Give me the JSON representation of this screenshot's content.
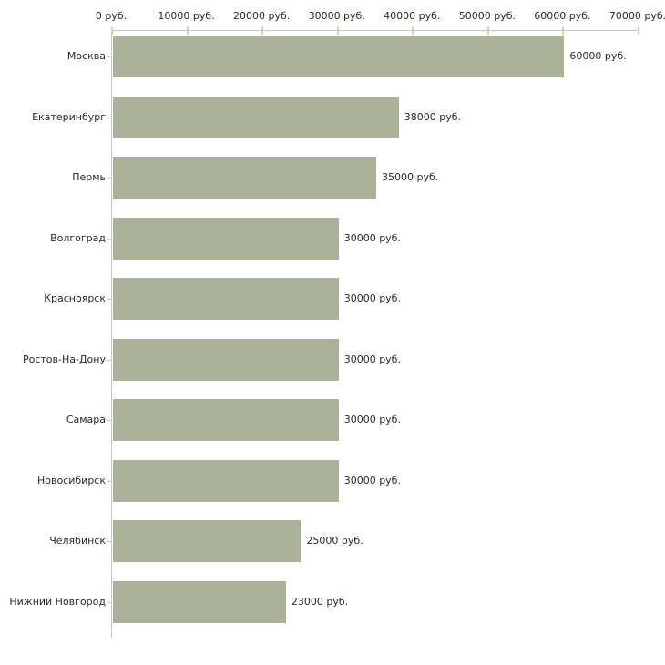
{
  "chart_data": {
    "type": "bar",
    "orientation": "horizontal",
    "title": "",
    "xlabel": "",
    "ylabel": "",
    "xlim": [
      0,
      70000
    ],
    "grid": false,
    "legend": false,
    "categories": [
      "Москва",
      "Екатеринбург",
      "Пермь",
      "Волгоград",
      "Красноярск",
      "Ростов-На-Дону",
      "Самара",
      "Новосибирск",
      "Челябинск",
      "Нижний Новгород"
    ],
    "values": [
      60000,
      38000,
      35000,
      30000,
      30000,
      30000,
      30000,
      30000,
      25000,
      23000
    ],
    "value_labels": [
      "60000 руб.",
      "38000 руб.",
      "35000 руб.",
      "30000 руб.",
      "30000 руб.",
      "30000 руб.",
      "30000 руб.",
      "30000 руб.",
      "25000 руб.",
      "23000 руб."
    ],
    "x_ticks": [
      0,
      10000,
      20000,
      30000,
      40000,
      50000,
      60000,
      70000
    ],
    "x_tick_labels": [
      "0 руб.",
      "10000 руб.",
      "20000 руб.",
      "30000 руб.",
      "40000 руб.",
      "50000 руб.",
      "60000 руб.",
      "70000 руб."
    ],
    "bar_color": "#acb199",
    "axis_line_color": "#c6c6c6",
    "tick_mark_color": "#d6d3a6",
    "text_color": "#2a2a2a"
  }
}
